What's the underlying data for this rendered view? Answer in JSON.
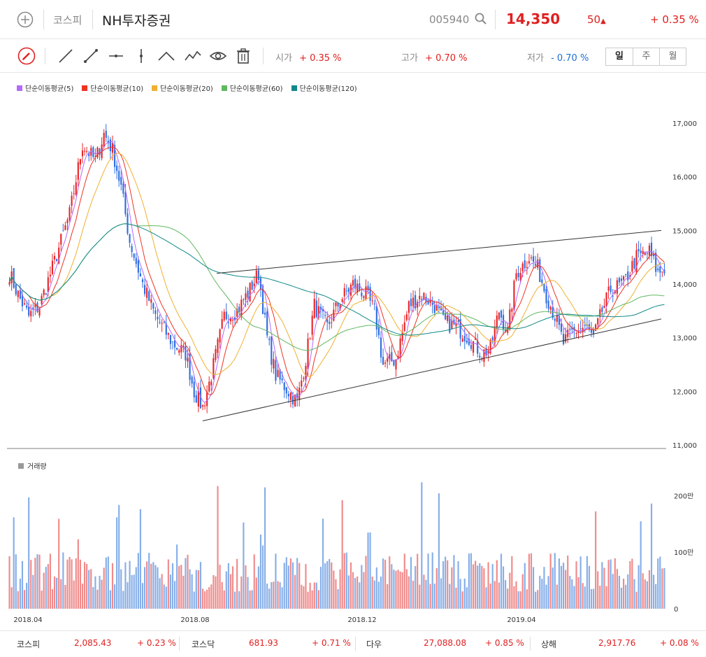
{
  "header": {
    "market": "코스피",
    "stock_name": "NH투자증권",
    "code": "005940",
    "price": "14,350",
    "change": "50",
    "change_pct": "+ 0.35 %"
  },
  "toolbar": {
    "open_label": "시가",
    "open_value": "+ 0.35 %",
    "high_label": "고가",
    "high_value": "+ 0.70 %",
    "low_label": "저가",
    "low_value": "- 0.70 %",
    "tabs": [
      "일",
      "주",
      "월"
    ]
  },
  "legend": [
    {
      "label": "단순이동평균(5)",
      "color": "#b469ff"
    },
    {
      "label": "단순이동평균(10)",
      "color": "#ee3322"
    },
    {
      "label": "단순이동평균(20)",
      "color": "#f0b030"
    },
    {
      "label": "단순이동평균(60)",
      "color": "#60b860"
    },
    {
      "label": "단순이동평균(120)",
      "color": "#118888"
    }
  ],
  "volume_label": "거래량",
  "chart_data": {
    "type": "candlestick",
    "price_ticks": [
      "17,000",
      "16,000",
      "15,000",
      "14,000",
      "13,000",
      "12,000",
      "11,000"
    ],
    "price_range": [
      11000,
      17000
    ],
    "volume_ticks": [
      "200만",
      "100만",
      "0"
    ],
    "volume_range": [
      0,
      2600000
    ],
    "x_ticks": [
      "2018.04",
      "2018.08",
      "2018.12",
      "2019.04"
    ],
    "close_anchors": [
      [
        0,
        14200
      ],
      [
        4,
        13800
      ],
      [
        9,
        13400
      ],
      [
        14,
        13600
      ],
      [
        20,
        14300
      ],
      [
        28,
        15300
      ],
      [
        34,
        16600
      ],
      [
        40,
        16300
      ],
      [
        44,
        16800
      ],
      [
        48,
        16500
      ],
      [
        52,
        15800
      ],
      [
        56,
        14800
      ],
      [
        62,
        14000
      ],
      [
        68,
        13400
      ],
      [
        76,
        12900
      ],
      [
        82,
        12700
      ],
      [
        86,
        12000
      ],
      [
        90,
        11700
      ],
      [
        94,
        12300
      ],
      [
        100,
        13400
      ],
      [
        106,
        13500
      ],
      [
        112,
        13900
      ],
      [
        116,
        14200
      ],
      [
        120,
        13000
      ],
      [
        124,
        12300
      ],
      [
        130,
        12000
      ],
      [
        134,
        11800
      ],
      [
        138,
        12600
      ],
      [
        142,
        13600
      ],
      [
        148,
        13200
      ],
      [
        154,
        13700
      ],
      [
        160,
        14000
      ],
      [
        166,
        13800
      ],
      [
        170,
        13500
      ],
      [
        174,
        12500
      ],
      [
        180,
        12600
      ],
      [
        186,
        13600
      ],
      [
        192,
        13800
      ],
      [
        198,
        13600
      ],
      [
        202,
        13300
      ],
      [
        208,
        13200
      ],
      [
        214,
        13000
      ],
      [
        220,
        12700
      ],
      [
        224,
        12800
      ],
      [
        228,
        13500
      ],
      [
        232,
        13100
      ],
      [
        236,
        14200
      ],
      [
        242,
        14500
      ],
      [
        246,
        14300
      ],
      [
        250,
        13800
      ],
      [
        254,
        13400
      ],
      [
        258,
        12900
      ],
      [
        262,
        13100
      ],
      [
        268,
        13200
      ],
      [
        272,
        13000
      ],
      [
        276,
        13500
      ],
      [
        280,
        13900
      ],
      [
        286,
        14000
      ],
      [
        292,
        14500
      ],
      [
        298,
        14600
      ],
      [
        302,
        14200
      ],
      [
        305,
        14300
      ]
    ],
    "trendlines": [
      {
        "from": [
          0.0,
          14200
        ],
        "to": [
          1.0,
          15000
        ]
      },
      {
        "from": [
          0.0,
          11450
        ],
        "to": [
          1.0,
          13350
        ]
      }
    ]
  },
  "footer": [
    {
      "name": "코스피",
      "value": "2,085.43",
      "change": "+ 0.23 %"
    },
    {
      "name": "코스닥",
      "value": "681.93",
      "change": "+ 0.71 %"
    },
    {
      "name": "다우",
      "value": "27,088.08",
      "change": "+ 0.85 %"
    },
    {
      "name": "상해",
      "value": "2,917.76",
      "change": "+ 0.08 %"
    }
  ]
}
